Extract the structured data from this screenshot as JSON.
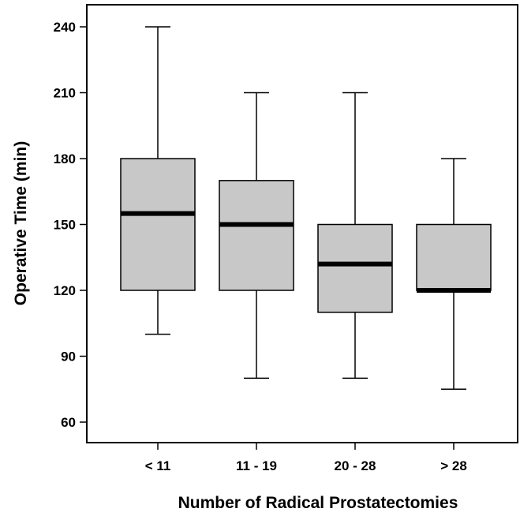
{
  "chart_data": {
    "type": "box",
    "xlabel": "Number of Radical Prostatectomies",
    "ylabel": "Operative Time (min)",
    "ylim": [
      50,
      250
    ],
    "yticks": [
      60,
      90,
      120,
      150,
      180,
      210,
      240
    ],
    "grid": false,
    "box_fill": "#c8c8c8",
    "median_color": "#000000",
    "categories": [
      "< 11",
      "11 - 19",
      "20 - 28",
      "> 28"
    ],
    "boxes": [
      {
        "category": "< 11",
        "min": 100,
        "q1": 120,
        "median": 155,
        "q3": 180,
        "max": 240
      },
      {
        "category": "11 - 19",
        "min": 80,
        "q1": 120,
        "median": 150,
        "q3": 170,
        "max": 210
      },
      {
        "category": "20 - 28",
        "min": 80,
        "q1": 110,
        "median": 132,
        "q3": 150,
        "max": 210
      },
      {
        "category": "> 28",
        "min": 75,
        "q1": 120,
        "median": 120,
        "q3": 150,
        "max": 180
      }
    ]
  }
}
